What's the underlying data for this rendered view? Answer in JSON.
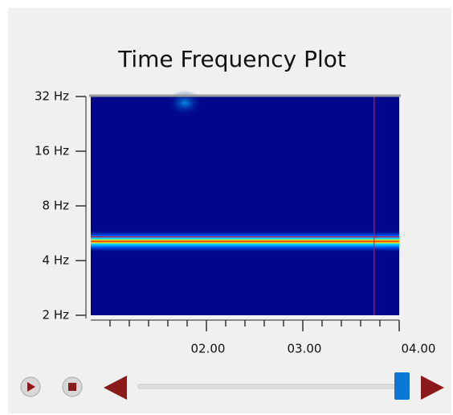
{
  "chart_data": {
    "type": "spectrogram",
    "title": "Time Frequency Plot",
    "ylog": true,
    "ylim": [
      2,
      32
    ],
    "yticks": [
      {
        "value": 2,
        "label": "2 Hz"
      },
      {
        "value": 4,
        "label": "4 Hz"
      },
      {
        "value": 8,
        "label": "8 Hz"
      },
      {
        "value": 16,
        "label": "16 Hz"
      },
      {
        "value": 32,
        "label": "32 Hz"
      }
    ],
    "xlim": [
      0.8,
      4.0
    ],
    "xticks": [
      {
        "value": 2,
        "label": "02.00"
      },
      {
        "value": 3,
        "label": "03.00"
      },
      {
        "value": 4,
        "label": "04.00"
      }
    ],
    "xminorticks": [
      1.0,
      1.2,
      1.4,
      1.6,
      1.8,
      2.2,
      2.4,
      2.6,
      2.8,
      3.2,
      3.4,
      3.6,
      3.8
    ],
    "background_color": "#00078c",
    "band_frequency": 5.1,
    "cursor": {
      "x": 3.74,
      "y": 5.4,
      "color": "#e0102a"
    }
  }
}
